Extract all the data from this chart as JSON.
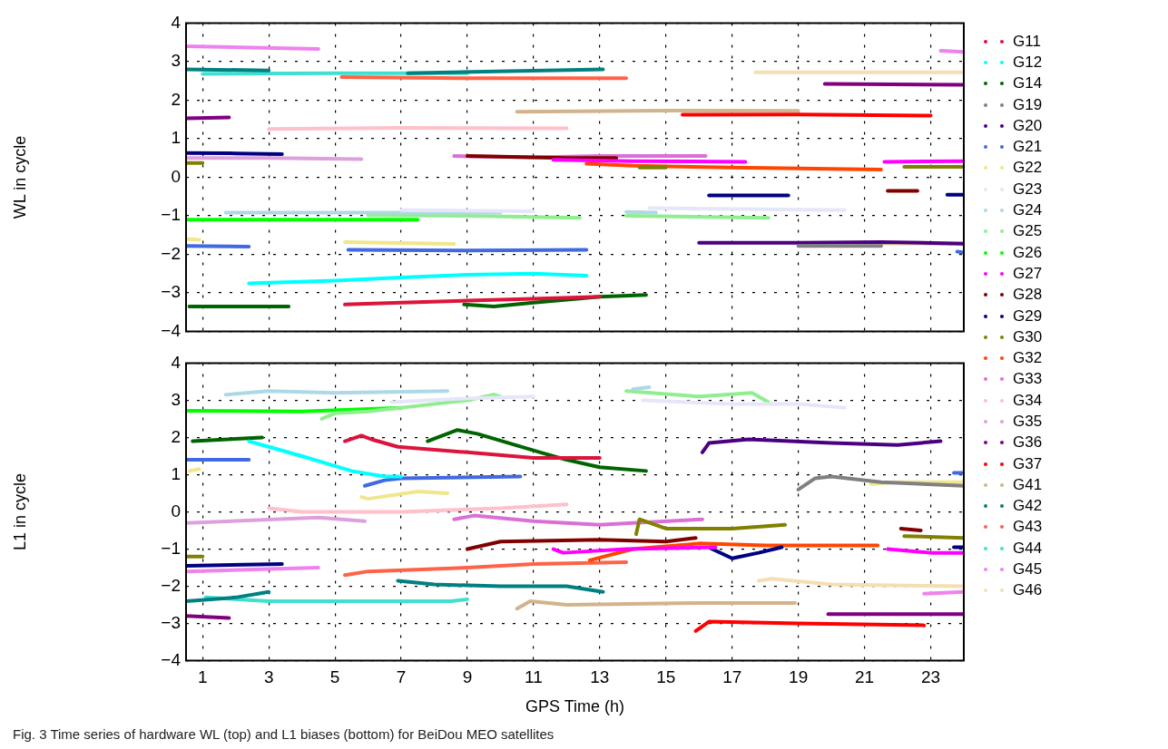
{
  "chart_data": [
    {
      "type": "line",
      "ylabel": "WL in cycle",
      "xlim": [
        0.5,
        24
      ],
      "xticks": [
        1,
        3,
        5,
        7,
        9,
        11,
        13,
        15,
        17,
        19,
        21,
        23
      ],
      "ylim": [
        -4,
        4
      ],
      "yticks": [
        -4,
        -3,
        -2,
        -1,
        0,
        1,
        2,
        3,
        4
      ],
      "grid": true,
      "legend": "right",
      "tick_labels": "y",
      "line_style": "solid",
      "series": [
        {
          "name": "G11",
          "color": "#dc143c",
          "x": [
            5.3,
            7,
            9,
            11,
            13
          ],
          "values": [
            -3.3,
            -3.25,
            -3.2,
            -3.15,
            -3.1
          ]
        },
        {
          "name": "G12",
          "color": "#00ffff",
          "x": [
            2.4,
            5,
            7,
            9,
            11,
            12.6
          ],
          "values": [
            -2.75,
            -2.68,
            -2.6,
            -2.53,
            -2.5,
            -2.55
          ]
        },
        {
          "name": "G14",
          "color": "#006400",
          "x": [
            0.6,
            3.6,
            6,
            8.9,
            9.8,
            11,
            13,
            14.4
          ],
          "values": [
            -3.35,
            -3.35,
            null,
            -3.3,
            -3.35,
            -3.25,
            -3.1,
            -3.05
          ]
        },
        {
          "name": "G19",
          "color": "#808080",
          "x": [
            19,
            21.5
          ],
          "values": [
            -1.78,
            -1.78
          ]
        },
        {
          "name": "G20",
          "color": "#4b0082",
          "x": [
            16,
            19,
            21.5,
            24
          ],
          "values": [
            -1.7,
            -1.7,
            -1.68,
            -1.72
          ]
        },
        {
          "name": "G21",
          "color": "#4169e1",
          "x": [
            0.5,
            2.4,
            4,
            5.4,
            9,
            12.6,
            18,
            23.8,
            24
          ],
          "values": [
            -1.78,
            -1.8,
            null,
            -1.88,
            -1.9,
            -1.88,
            null,
            -1.93,
            -1.95
          ]
        },
        {
          "name": "G22",
          "color": "#f0e68c",
          "x": [
            0.5,
            0.9,
            3,
            5.3,
            8.6,
            15,
            21.5,
            24
          ],
          "values": [
            -1.6,
            -1.62,
            null,
            -1.68,
            -1.73,
            null,
            -1.72,
            -1.72
          ]
        },
        {
          "name": "G23",
          "color": "#e6e6fa",
          "x": [
            7,
            11,
            12.5,
            14.5,
            20.4
          ],
          "values": [
            -0.85,
            -0.88,
            null,
            -0.8,
            -0.85
          ]
        },
        {
          "name": "G24",
          "color": "#add8e6",
          "x": [
            1.7,
            6,
            10,
            12,
            13.8,
            14.7
          ],
          "values": [
            -0.92,
            -0.92,
            -0.92,
            null,
            -0.9,
            -0.92
          ]
        },
        {
          "name": "G25",
          "color": "#90ee90",
          "x": [
            6,
            9,
            12.4,
            13,
            13.8,
            18.1
          ],
          "values": [
            -0.98,
            -1.0,
            -1.05,
            null,
            -1.0,
            -1.05
          ]
        },
        {
          "name": "G26",
          "color": "#00ff00",
          "x": [
            0.5,
            4,
            7.5
          ],
          "values": [
            -1.1,
            -1.1,
            -1.1
          ]
        },
        {
          "name": "G27",
          "color": "#ff00ff",
          "x": [
            11.6,
            14,
            17.4,
            19,
            21.6,
            24
          ],
          "values": [
            0.45,
            0.42,
            0.4,
            null,
            0.4,
            0.42
          ]
        },
        {
          "name": "G28",
          "color": "#800000",
          "x": [
            9,
            12,
            13.5,
            17,
            21.7,
            22.6
          ],
          "values": [
            0.55,
            0.5,
            0.5,
            null,
            -0.35,
            -0.35
          ]
        },
        {
          "name": "G29",
          "color": "#000080",
          "x": [
            0.5,
            2,
            3.4,
            10,
            16.3,
            18.7,
            21,
            23.5,
            24
          ],
          "values": [
            0.63,
            0.62,
            0.6,
            null,
            -0.47,
            -0.47,
            null,
            -0.45,
            -0.45
          ]
        },
        {
          "name": "G30",
          "color": "#808000",
          "x": [
            0.5,
            1,
            7,
            14.2,
            15,
            19,
            22.2,
            24
          ],
          "values": [
            0.37,
            0.37,
            null,
            0.25,
            0.25,
            null,
            0.27,
            0.27
          ]
        },
        {
          "name": "G32",
          "color": "#ff4500",
          "x": [
            12.6,
            14,
            17,
            21.5
          ],
          "values": [
            0.35,
            0.3,
            0.25,
            0.2
          ]
        },
        {
          "name": "G33",
          "color": "#da70d6",
          "x": [
            8.6,
            11,
            13,
            16.2
          ],
          "values": [
            0.55,
            0.52,
            0.55,
            0.55
          ]
        },
        {
          "name": "G34",
          "color": "#ffc0cb",
          "x": [
            3,
            7,
            12
          ],
          "values": [
            1.25,
            1.28,
            1.27
          ]
        },
        {
          "name": "G35",
          "color": "#dda0dd",
          "x": [
            0.5,
            3,
            5.8
          ],
          "values": [
            0.5,
            0.5,
            0.47
          ]
        },
        {
          "name": "G36",
          "color": "#800080",
          "x": [
            0.5,
            1.8,
            10,
            19.8,
            24
          ],
          "values": [
            1.53,
            1.55,
            null,
            2.42,
            2.4
          ]
        },
        {
          "name": "G37",
          "color": "#ff0000",
          "x": [
            15.5,
            19,
            23
          ],
          "values": [
            1.62,
            1.63,
            1.6
          ]
        },
        {
          "name": "G41",
          "color": "#d2b48c",
          "x": [
            10.5,
            15,
            19
          ],
          "values": [
            1.7,
            1.73,
            1.72
          ]
        },
        {
          "name": "G42",
          "color": "#008080",
          "x": [
            0.5,
            3,
            5,
            7.2,
            13.1
          ],
          "values": [
            2.8,
            2.77,
            null,
            2.7,
            2.8
          ]
        },
        {
          "name": "G43",
          "color": "#ff6347",
          "x": [
            5.2,
            9,
            13.8
          ],
          "values": [
            2.6,
            2.57,
            2.57
          ]
        },
        {
          "name": "G44",
          "color": "#40e0d0",
          "x": [
            1,
            5,
            9
          ],
          "values": [
            2.68,
            2.7,
            2.7
          ]
        },
        {
          "name": "G45",
          "color": "#ee82ee",
          "x": [
            0.5,
            4.5,
            14,
            23.3,
            24
          ],
          "values": [
            3.4,
            3.33,
            null,
            3.28,
            3.25
          ]
        },
        {
          "name": "G46",
          "color": "#f5deb3",
          "x": [
            17.7,
            21,
            24
          ],
          "values": [
            2.72,
            2.72,
            2.72
          ]
        }
      ]
    },
    {
      "type": "line",
      "xlabel": "GPS Time (h)",
      "ylabel": "L1 in cycle",
      "xlim": [
        0.5,
        24
      ],
      "xticks": [
        1,
        3,
        5,
        7,
        9,
        11,
        13,
        15,
        17,
        19,
        21,
        23
      ],
      "ylim": [
        -4,
        4
      ],
      "yticks": [
        -4,
        -3,
        -2,
        -1,
        0,
        1,
        2,
        3,
        4
      ],
      "grid": true,
      "line_style": "solid",
      "annotations": [
        "Fig. 3 Time series of hardware WL (top) and L1 biases (bottom) for BeiDou MEO satellites"
      ],
      "series": [
        {
          "color": "#dc143c",
          "x": [
            5.3,
            5.8,
            6.1,
            6.9,
            9,
            11,
            13
          ],
          "values": [
            1.9,
            2.05,
            1.95,
            1.75,
            1.6,
            1.45,
            1.45
          ]
        },
        {
          "color": "#00ffff",
          "x": [
            2.4,
            3,
            4,
            5.5,
            6.5,
            7
          ],
          "values": [
            1.9,
            1.75,
            1.5,
            1.1,
            0.95,
            0.95
          ]
        },
        {
          "color": "#006400",
          "x": [
            0.7,
            2.8,
            5,
            7.8,
            8.1,
            8.7,
            9.3,
            11.2,
            12,
            13,
            14.4
          ],
          "values": [
            1.9,
            2.0,
            null,
            1.9,
            2.0,
            2.2,
            2.1,
            1.6,
            1.4,
            1.2,
            1.1
          ]
        },
        {
          "color": "#808080",
          "x": [
            19,
            19.5,
            20,
            21.5,
            24
          ],
          "values": [
            0.6,
            0.9,
            0.95,
            0.8,
            0.7
          ]
        },
        {
          "color": "#4b0082",
          "x": [
            16.1,
            16.3,
            17.5,
            20,
            22,
            23.3
          ],
          "values": [
            1.6,
            1.85,
            1.95,
            1.85,
            1.8,
            1.9
          ]
        },
        {
          "color": "#4169e1",
          "x": [
            0.5,
            2.4,
            4,
            5.9,
            6.5,
            7,
            10.6,
            15,
            23.7,
            24
          ],
          "values": [
            1.4,
            1.4,
            null,
            0.7,
            0.85,
            0.9,
            0.95,
            null,
            1.05,
            1.05
          ]
        },
        {
          "color": "#f0e68c",
          "x": [
            0.6,
            0.9,
            3,
            5.8,
            6,
            7.5,
            8.4,
            15,
            21.2,
            22,
            24
          ],
          "values": [
            1.1,
            1.15,
            null,
            0.4,
            0.35,
            0.55,
            0.5,
            null,
            0.75,
            0.8,
            0.8
          ]
        },
        {
          "color": "#e6e6fa",
          "x": [
            6.7,
            9,
            11,
            12.5,
            14.3,
            17,
            19,
            20.4
          ],
          "values": [
            2.95,
            3.05,
            3.1,
            null,
            3.0,
            2.9,
            2.9,
            2.8
          ]
        },
        {
          "color": "#add8e6",
          "x": [
            1.7,
            3,
            5,
            8.4,
            11,
            14,
            14.5
          ],
          "values": [
            3.15,
            3.25,
            3.2,
            3.25,
            null,
            3.3,
            3.35
          ]
        },
        {
          "color": "#90ee90",
          "x": [
            4.6,
            5,
            6,
            7,
            9,
            9.8,
            10,
            12,
            13.8,
            16,
            17.6,
            18.1
          ],
          "values": [
            2.5,
            2.65,
            2.7,
            2.8,
            3.0,
            3.15,
            3.1,
            null,
            3.25,
            3.1,
            3.2,
            2.95
          ]
        },
        {
          "color": "#00ff00",
          "x": [
            0.5,
            4,
            7
          ],
          "values": [
            2.72,
            2.7,
            2.8
          ]
        },
        {
          "color": "#ff00ff",
          "x": [
            11.6,
            11.9,
            13.8,
            16.5,
            19,
            21.7,
            23,
            24
          ],
          "values": [
            -1.0,
            -1.1,
            -1.0,
            -0.95,
            null,
            -1.0,
            -1.1,
            -1.1
          ]
        },
        {
          "color": "#800000",
          "x": [
            9,
            10,
            13,
            15,
            15.9,
            19,
            22.1,
            22.7
          ],
          "values": [
            -1.0,
            -0.8,
            -0.75,
            -0.8,
            -0.7,
            null,
            -0.45,
            -0.5
          ]
        },
        {
          "color": "#000080",
          "x": [
            0.5,
            3.4,
            10,
            16.4,
            17,
            17.8,
            18.5,
            21,
            23.7,
            24
          ],
          "values": [
            -1.45,
            -1.4,
            null,
            -1.0,
            -1.25,
            -1.1,
            -0.95,
            null,
            -0.95,
            -0.95
          ]
        },
        {
          "color": "#808000",
          "x": [
            0.5,
            1,
            7,
            14.1,
            14.2,
            15,
            17,
            18.6,
            20,
            22.2,
            24
          ],
          "values": [
            -1.2,
            -1.2,
            null,
            -0.6,
            -0.2,
            -0.45,
            -0.45,
            -0.35,
            null,
            -0.65,
            -0.7
          ]
        },
        {
          "color": "#ff4500",
          "x": [
            12.7,
            14,
            16,
            18,
            21.4
          ],
          "values": [
            -1.3,
            -1.0,
            -0.85,
            -0.9,
            -0.9
          ]
        },
        {
          "color": "#da70d6",
          "x": [
            8.6,
            9.2,
            11,
            13,
            14,
            16.1
          ],
          "values": [
            -0.2,
            -0.1,
            -0.25,
            -0.35,
            -0.3,
            -0.2
          ]
        },
        {
          "color": "#ffc0cb",
          "x": [
            3,
            4,
            7,
            10,
            12
          ],
          "values": [
            0.1,
            0,
            0,
            0.1,
            0.2
          ]
        },
        {
          "color": "#dda0dd",
          "x": [
            0.5,
            4.5,
            5.9
          ],
          "values": [
            -0.3,
            -0.15,
            -0.25
          ]
        },
        {
          "color": "#800080",
          "x": [
            0.5,
            1.8,
            10,
            19.9,
            24
          ],
          "values": [
            -2.8,
            -2.85,
            null,
            -2.75,
            -2.75
          ]
        },
        {
          "color": "#ff0000",
          "x": [
            15.9,
            16.3,
            19,
            22.8
          ],
          "values": [
            -3.2,
            -2.95,
            -3.0,
            -3.05
          ]
        },
        {
          "color": "#d2b48c",
          "x": [
            10.5,
            10.9,
            12,
            16,
            18.9
          ],
          "values": [
            -2.6,
            -2.4,
            -2.5,
            -2.45,
            -2.45
          ]
        },
        {
          "color": "#008080",
          "x": [
            0.5,
            2,
            3,
            5,
            6.9,
            8,
            10,
            12,
            13.1
          ],
          "values": [
            -2.4,
            -2.3,
            -2.15,
            null,
            -1.85,
            -1.95,
            -2.0,
            -2.0,
            -2.15
          ]
        },
        {
          "color": "#ff6347",
          "x": [
            5.3,
            6,
            9,
            11,
            13.8
          ],
          "values": [
            -1.7,
            -1.6,
            -1.5,
            -1.4,
            -1.35
          ]
        },
        {
          "color": "#40e0d0",
          "x": [
            1.1,
            3,
            8.5,
            9
          ],
          "values": [
            -2.3,
            -2.4,
            -2.4,
            -2.35
          ]
        },
        {
          "color": "#ee82ee",
          "x": [
            0.5,
            4.5,
            10,
            22.8,
            24
          ],
          "values": [
            -1.6,
            -1.5,
            null,
            -2.2,
            -2.15
          ]
        },
        {
          "color": "#f5deb3",
          "x": [
            17.8,
            18.2,
            20,
            24
          ],
          "values": [
            -1.85,
            -1.8,
            -1.95,
            -2.0
          ]
        }
      ]
    }
  ]
}
